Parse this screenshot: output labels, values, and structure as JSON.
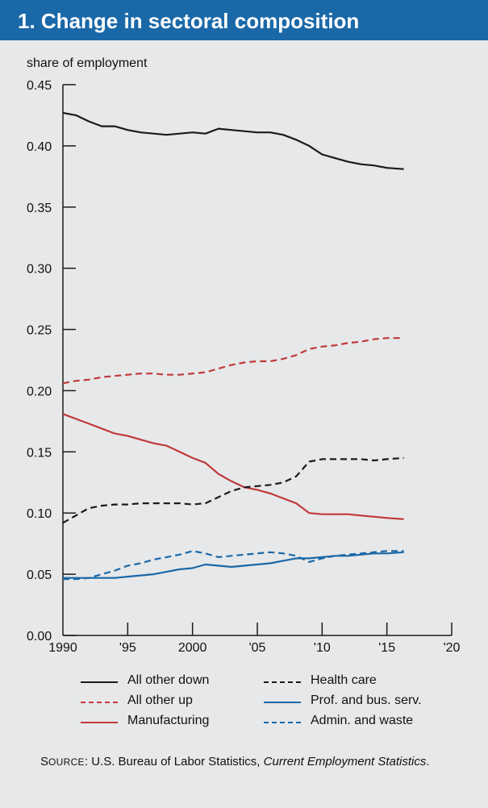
{
  "title": "1.  Change in sectoral composition",
  "colors": {
    "title_bar": "#1a68a8",
    "background": "#e7e8e9",
    "black": "#1a1a1a",
    "red": "#c0393b",
    "blue": "#1a68a8"
  },
  "chart_data": {
    "type": "line",
    "ylabel": "share of employment",
    "ylim": [
      0.0,
      0.45
    ],
    "xlim": [
      1990,
      2020
    ],
    "y_ticks": [
      0.0,
      0.05,
      0.1,
      0.15,
      0.2,
      0.25,
      0.3,
      0.35,
      0.4,
      0.45
    ],
    "y_tick_labels": [
      "0.00",
      "0.05",
      "0.10",
      "0.15",
      "0.20",
      "0.25",
      "0.30",
      "0.35",
      "0.40",
      "0.45"
    ],
    "x_ticks": [
      1990,
      1995,
      2000,
      2005,
      2010,
      2015,
      2020
    ],
    "x_tick_labels": [
      "1990",
      "'95",
      "2000",
      "'05",
      "'10",
      "'15",
      "'20"
    ],
    "series": [
      {
        "name": "All other down",
        "color": "#1a1a1a",
        "dash": "solid",
        "x": [
          1990,
          1991,
          1992,
          1993,
          1994,
          1995,
          1996,
          1997,
          1998,
          1999,
          2000,
          2001,
          2002,
          2003,
          2004,
          2005,
          2006,
          2007,
          2008,
          2009,
          2010,
          2011,
          2012,
          2013,
          2014,
          2015,
          2016.3
        ],
        "y": [
          0.427,
          0.425,
          0.42,
          0.416,
          0.416,
          0.413,
          0.411,
          0.41,
          0.409,
          0.41,
          0.411,
          0.41,
          0.414,
          0.413,
          0.412,
          0.411,
          0.411,
          0.409,
          0.405,
          0.4,
          0.393,
          0.39,
          0.387,
          0.385,
          0.384,
          0.382,
          0.381
        ]
      },
      {
        "name": "All other up",
        "color": "#c0393b",
        "dash": "dashed",
        "x": [
          1990,
          1991,
          1992,
          1993,
          1994,
          1995,
          1996,
          1997,
          1998,
          1999,
          2000,
          2001,
          2002,
          2003,
          2004,
          2005,
          2006,
          2007,
          2008,
          2009,
          2010,
          2011,
          2012,
          2013,
          2014,
          2015,
          2016.3
        ],
        "y": [
          0.206,
          0.208,
          0.209,
          0.211,
          0.212,
          0.213,
          0.214,
          0.214,
          0.213,
          0.213,
          0.214,
          0.215,
          0.218,
          0.221,
          0.223,
          0.224,
          0.224,
          0.226,
          0.229,
          0.234,
          0.236,
          0.237,
          0.239,
          0.24,
          0.242,
          0.243,
          0.243
        ]
      },
      {
        "name": "Manufacturing",
        "color": "#c0393b",
        "dash": "solid",
        "x": [
          1990,
          1991,
          1992,
          1993,
          1994,
          1995,
          1996,
          1997,
          1998,
          1999,
          2000,
          2001,
          2002,
          2003,
          2004,
          2005,
          2006,
          2007,
          2008,
          2009,
          2010,
          2011,
          2012,
          2013,
          2014,
          2015,
          2016.3
        ],
        "y": [
          0.181,
          0.177,
          0.173,
          0.169,
          0.165,
          0.163,
          0.16,
          0.157,
          0.155,
          0.15,
          0.145,
          0.141,
          0.132,
          0.126,
          0.121,
          0.119,
          0.116,
          0.112,
          0.108,
          0.1,
          0.099,
          0.099,
          0.099,
          0.098,
          0.097,
          0.096,
          0.095
        ]
      },
      {
        "name": "Health care",
        "color": "#1a1a1a",
        "dash": "dashed",
        "x": [
          1990,
          1991,
          1992,
          1993,
          1994,
          1995,
          1996,
          1997,
          1998,
          1999,
          2000,
          2001,
          2002,
          2003,
          2004,
          2005,
          2006,
          2007,
          2008,
          2009,
          2010,
          2011,
          2012,
          2013,
          2014,
          2015,
          2016.3
        ],
        "y": [
          0.092,
          0.098,
          0.104,
          0.106,
          0.107,
          0.107,
          0.108,
          0.108,
          0.108,
          0.108,
          0.107,
          0.108,
          0.113,
          0.118,
          0.121,
          0.122,
          0.123,
          0.125,
          0.13,
          0.142,
          0.144,
          0.144,
          0.144,
          0.144,
          0.143,
          0.144,
          0.145
        ]
      },
      {
        "name": "Prof. and bus. serv.",
        "color": "#1a68a8",
        "dash": "solid",
        "x": [
          1990,
          1991,
          1992,
          1993,
          1994,
          1995,
          1996,
          1997,
          1998,
          1999,
          2000,
          2001,
          2002,
          2003,
          2004,
          2005,
          2006,
          2007,
          2008,
          2009,
          2010,
          2011,
          2012,
          2013,
          2014,
          2015,
          2016.3
        ],
        "y": [
          0.047,
          0.047,
          0.047,
          0.047,
          0.047,
          0.048,
          0.049,
          0.05,
          0.052,
          0.054,
          0.055,
          0.058,
          0.057,
          0.056,
          0.057,
          0.058,
          0.059,
          0.061,
          0.063,
          0.063,
          0.064,
          0.065,
          0.065,
          0.066,
          0.067,
          0.067,
          0.068
        ]
      },
      {
        "name": "Admin. and waste",
        "color": "#1a68a8",
        "dash": "dashed",
        "x": [
          1990,
          1991,
          1992,
          1993,
          1994,
          1995,
          1996,
          1997,
          1998,
          1999,
          2000,
          2001,
          2002,
          2003,
          2004,
          2005,
          2006,
          2007,
          2008,
          2009,
          2010,
          2011,
          2012,
          2013,
          2014,
          2015,
          2016.3
        ],
        "y": [
          0.046,
          0.046,
          0.047,
          0.05,
          0.053,
          0.057,
          0.059,
          0.062,
          0.064,
          0.066,
          0.069,
          0.067,
          0.064,
          0.065,
          0.066,
          0.067,
          0.068,
          0.067,
          0.065,
          0.06,
          0.063,
          0.065,
          0.066,
          0.067,
          0.068,
          0.069,
          0.069
        ]
      }
    ]
  },
  "legend": [
    {
      "label": "All other down",
      "color": "#1a1a1a",
      "dash": "solid"
    },
    {
      "label": "Health care",
      "color": "#1a1a1a",
      "dash": "dashed"
    },
    {
      "label": "All other up",
      "color": "#c0393b",
      "dash": "dashed"
    },
    {
      "label": "Prof. and bus. serv.",
      "color": "#1a68a8",
      "dash": "solid"
    },
    {
      "label": "Manufacturing",
      "color": "#c0393b",
      "dash": "solid"
    },
    {
      "label": "Admin. and waste",
      "color": "#1a68a8",
      "dash": "dashed"
    }
  ],
  "source": {
    "prefix_first": "S",
    "prefix_rest": "OURCE",
    "colon": ": ",
    "text": "U.S. Bureau of Labor Statistics, ",
    "italic": "Current Employment Statistics",
    "end": "."
  }
}
